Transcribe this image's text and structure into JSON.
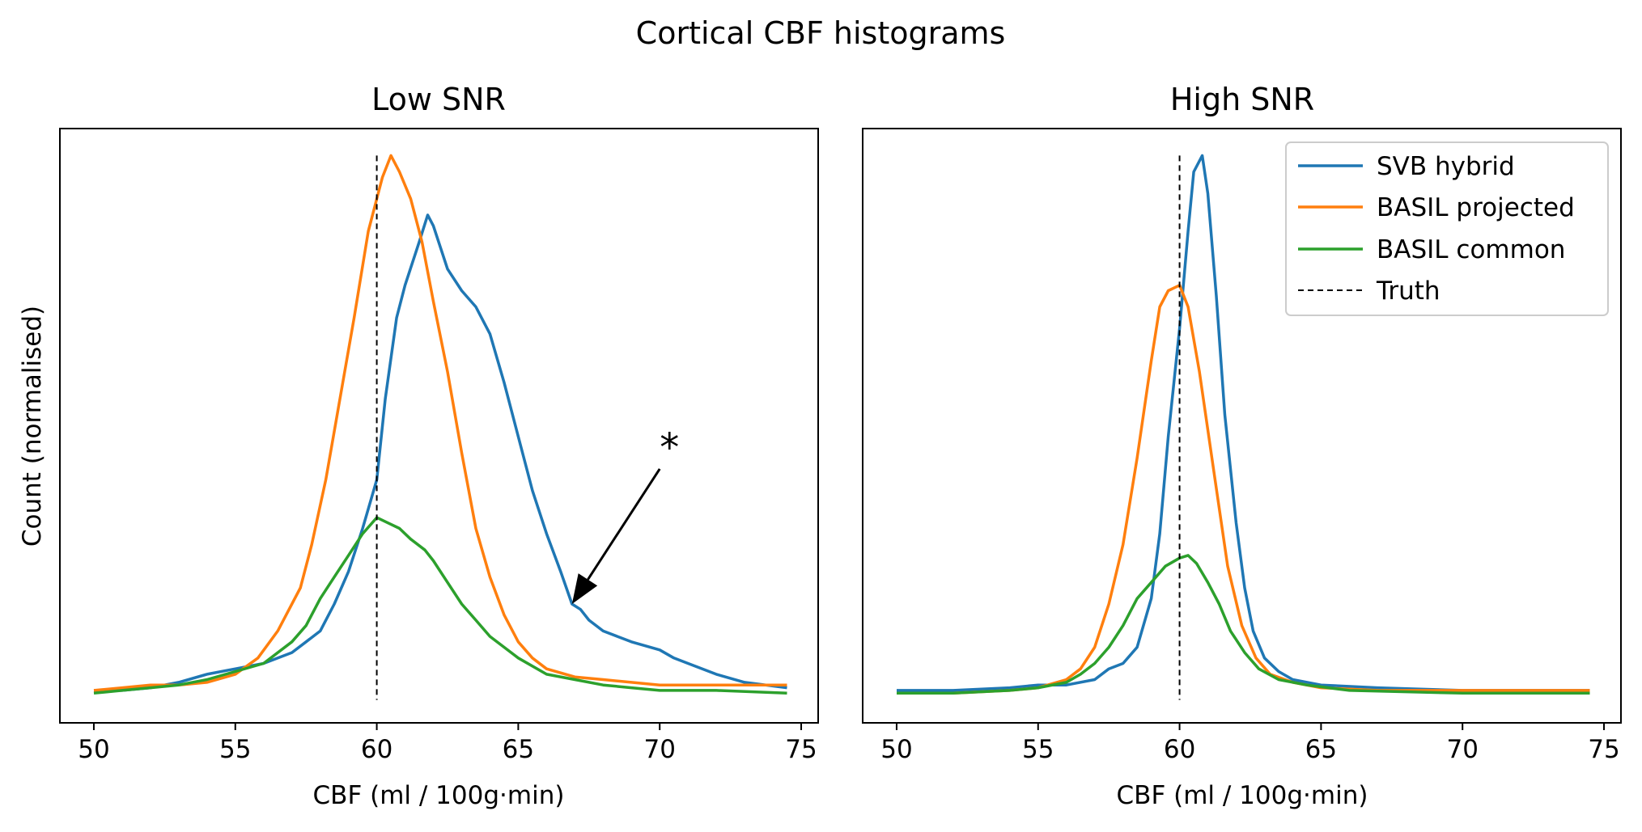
{
  "figure": {
    "title": "Cortical CBF histograms",
    "ylabel": "Count (normalised)"
  },
  "legend": {
    "placement": "top-right",
    "items": [
      {
        "label": "SVB hybrid",
        "color": "#1f77b4",
        "dashed": false
      },
      {
        "label": "BASIL projected",
        "color": "#ff7f0e",
        "dashed": false
      },
      {
        "label": "BASIL common",
        "color": "#2ca02c",
        "dashed": false
      },
      {
        "label": "Truth",
        "color": "#000000",
        "dashed": true
      }
    ]
  },
  "chart_data": [
    {
      "type": "line",
      "title": "Low SNR",
      "xlabel": "CBF (ml / 100g·min)",
      "ylabel": "Count (normalised)",
      "xlim": [
        48.8,
        75.6
      ],
      "ylim": [
        -0.05,
        1.05
      ],
      "xticks": [
        50,
        55,
        60,
        65,
        70,
        75
      ],
      "yticks_shown": false,
      "grid": false,
      "truth_x": 60,
      "annotation": {
        "text": "*",
        "arrow_from": [
          70,
          0.42
        ],
        "arrow_to": [
          66.9,
          0.17
        ]
      },
      "series": [
        {
          "name": "SVB hybrid",
          "color": "#1f77b4",
          "points": [
            [
              50,
              0.01
            ],
            [
              51,
              0.01
            ],
            [
              52,
              0.015
            ],
            [
              53,
              0.025
            ],
            [
              54,
              0.04
            ],
            [
              55,
              0.05
            ],
            [
              56,
              0.06
            ],
            [
              57,
              0.08
            ],
            [
              57.5,
              0.1
            ],
            [
              58,
              0.12
            ],
            [
              58.5,
              0.17
            ],
            [
              59,
              0.23
            ],
            [
              59.5,
              0.31
            ],
            [
              60,
              0.4
            ],
            [
              60.3,
              0.55
            ],
            [
              60.7,
              0.7
            ],
            [
              61,
              0.76
            ],
            [
              61.5,
              0.84
            ],
            [
              61.8,
              0.89
            ],
            [
              62,
              0.87
            ],
            [
              62.5,
              0.79
            ],
            [
              63,
              0.75
            ],
            [
              63.5,
              0.72
            ],
            [
              64,
              0.67
            ],
            [
              64.5,
              0.58
            ],
            [
              65,
              0.48
            ],
            [
              65.5,
              0.38
            ],
            [
              66,
              0.3
            ],
            [
              66.5,
              0.23
            ],
            [
              66.9,
              0.17
            ],
            [
              67.2,
              0.16
            ],
            [
              67.5,
              0.14
            ],
            [
              68,
              0.12
            ],
            [
              68.5,
              0.11
            ],
            [
              69,
              0.1
            ],
            [
              70,
              0.085
            ],
            [
              70.5,
              0.07
            ],
            [
              71,
              0.06
            ],
            [
              72,
              0.04
            ],
            [
              73,
              0.025
            ],
            [
              74.5,
              0.015
            ]
          ]
        },
        {
          "name": "BASIL projected",
          "color": "#ff7f0e",
          "points": [
            [
              50,
              0.01
            ],
            [
              51,
              0.015
            ],
            [
              52,
              0.02
            ],
            [
              53,
              0.02
            ],
            [
              54,
              0.025
            ],
            [
              55,
              0.04
            ],
            [
              55.8,
              0.07
            ],
            [
              56.5,
              0.12
            ],
            [
              57.3,
              0.2
            ],
            [
              57.7,
              0.28
            ],
            [
              58.2,
              0.4
            ],
            [
              58.7,
              0.55
            ],
            [
              59.2,
              0.7
            ],
            [
              59.7,
              0.86
            ],
            [
              60.2,
              0.96
            ],
            [
              60.5,
              1.0
            ],
            [
              60.8,
              0.97
            ],
            [
              61.2,
              0.92
            ],
            [
              61.6,
              0.84
            ],
            [
              62,
              0.73
            ],
            [
              62.5,
              0.6
            ],
            [
              63,
              0.45
            ],
            [
              63.5,
              0.31
            ],
            [
              64,
              0.22
            ],
            [
              64.5,
              0.15
            ],
            [
              65,
              0.1
            ],
            [
              65.5,
              0.07
            ],
            [
              66,
              0.05
            ],
            [
              67,
              0.035
            ],
            [
              68,
              0.03
            ],
            [
              69,
              0.025
            ],
            [
              70,
              0.02
            ],
            [
              71,
              0.02
            ],
            [
              72,
              0.02
            ],
            [
              73,
              0.02
            ],
            [
              74.5,
              0.02
            ]
          ]
        },
        {
          "name": "BASIL common",
          "color": "#2ca02c",
          "points": [
            [
              50,
              0.005
            ],
            [
              51,
              0.01
            ],
            [
              52,
              0.015
            ],
            [
              53,
              0.02
            ],
            [
              54,
              0.03
            ],
            [
              55,
              0.045
            ],
            [
              56,
              0.06
            ],
            [
              57,
              0.1
            ],
            [
              57.5,
              0.13
            ],
            [
              58,
              0.18
            ],
            [
              58.5,
              0.22
            ],
            [
              59,
              0.26
            ],
            [
              59.5,
              0.3
            ],
            [
              60,
              0.33
            ],
            [
              60.4,
              0.32
            ],
            [
              60.8,
              0.31
            ],
            [
              61.2,
              0.29
            ],
            [
              61.7,
              0.27
            ],
            [
              62,
              0.25
            ],
            [
              62.5,
              0.21
            ],
            [
              63,
              0.17
            ],
            [
              63.5,
              0.14
            ],
            [
              64,
              0.11
            ],
            [
              65,
              0.07
            ],
            [
              66,
              0.04
            ],
            [
              67,
              0.03
            ],
            [
              68,
              0.02
            ],
            [
              69,
              0.015
            ],
            [
              70,
              0.01
            ],
            [
              72,
              0.01
            ],
            [
              74.5,
              0.005
            ]
          ]
        }
      ]
    },
    {
      "type": "line",
      "title": "High SNR",
      "xlabel": "CBF (ml / 100g·min)",
      "ylabel": "",
      "xlim": [
        48.8,
        75.6
      ],
      "ylim": [
        -0.05,
        1.05
      ],
      "xticks": [
        50,
        55,
        60,
        65,
        70,
        75
      ],
      "yticks_shown": false,
      "grid": false,
      "truth_x": 60,
      "series": [
        {
          "name": "SVB hybrid",
          "color": "#1f77b4",
          "points": [
            [
              50,
              0.01
            ],
            [
              52,
              0.01
            ],
            [
              54,
              0.015
            ],
            [
              55,
              0.02
            ],
            [
              56,
              0.02
            ],
            [
              57,
              0.03
            ],
            [
              57.5,
              0.05
            ],
            [
              58,
              0.06
            ],
            [
              58.5,
              0.09
            ],
            [
              59,
              0.18
            ],
            [
              59.3,
              0.3
            ],
            [
              59.6,
              0.48
            ],
            [
              60,
              0.68
            ],
            [
              60.3,
              0.86
            ],
            [
              60.5,
              0.97
            ],
            [
              60.8,
              1.0
            ],
            [
              61,
              0.93
            ],
            [
              61.3,
              0.74
            ],
            [
              61.6,
              0.52
            ],
            [
              62,
              0.32
            ],
            [
              62.3,
              0.2
            ],
            [
              62.6,
              0.12
            ],
            [
              63,
              0.07
            ],
            [
              63.5,
              0.045
            ],
            [
              64,
              0.03
            ],
            [
              65,
              0.02
            ],
            [
              67,
              0.015
            ],
            [
              70,
              0.01
            ],
            [
              74.5,
              0.01
            ]
          ]
        },
        {
          "name": "BASIL projected",
          "color": "#ff7f0e",
          "points": [
            [
              50,
              0.005
            ],
            [
              52,
              0.005
            ],
            [
              54,
              0.01
            ],
            [
              55,
              0.015
            ],
            [
              56,
              0.03
            ],
            [
              56.5,
              0.05
            ],
            [
              57,
              0.09
            ],
            [
              57.5,
              0.17
            ],
            [
              58,
              0.28
            ],
            [
              58.5,
              0.44
            ],
            [
              59,
              0.62
            ],
            [
              59.3,
              0.72
            ],
            [
              59.6,
              0.75
            ],
            [
              60,
              0.76
            ],
            [
              60.3,
              0.72
            ],
            [
              60.7,
              0.6
            ],
            [
              61.2,
              0.42
            ],
            [
              61.7,
              0.24
            ],
            [
              62.2,
              0.13
            ],
            [
              62.7,
              0.07
            ],
            [
              63.2,
              0.04
            ],
            [
              64,
              0.025
            ],
            [
              65,
              0.015
            ],
            [
              67,
              0.01
            ],
            [
              70,
              0.01
            ],
            [
              74.5,
              0.01
            ]
          ]
        },
        {
          "name": "BASIL common",
          "color": "#2ca02c",
          "points": [
            [
              50,
              0.005
            ],
            [
              52,
              0.005
            ],
            [
              54,
              0.01
            ],
            [
              55,
              0.015
            ],
            [
              56,
              0.025
            ],
            [
              56.5,
              0.04
            ],
            [
              57,
              0.06
            ],
            [
              57.5,
              0.09
            ],
            [
              58,
              0.13
            ],
            [
              58.5,
              0.18
            ],
            [
              59,
              0.21
            ],
            [
              59.5,
              0.24
            ],
            [
              60,
              0.255
            ],
            [
              60.3,
              0.26
            ],
            [
              60.6,
              0.245
            ],
            [
              61,
              0.21
            ],
            [
              61.4,
              0.17
            ],
            [
              61.8,
              0.12
            ],
            [
              62.3,
              0.08
            ],
            [
              62.8,
              0.05
            ],
            [
              63.5,
              0.03
            ],
            [
              64.5,
              0.02
            ],
            [
              66,
              0.01
            ],
            [
              70,
              0.005
            ],
            [
              74.5,
              0.005
            ]
          ]
        }
      ]
    }
  ]
}
